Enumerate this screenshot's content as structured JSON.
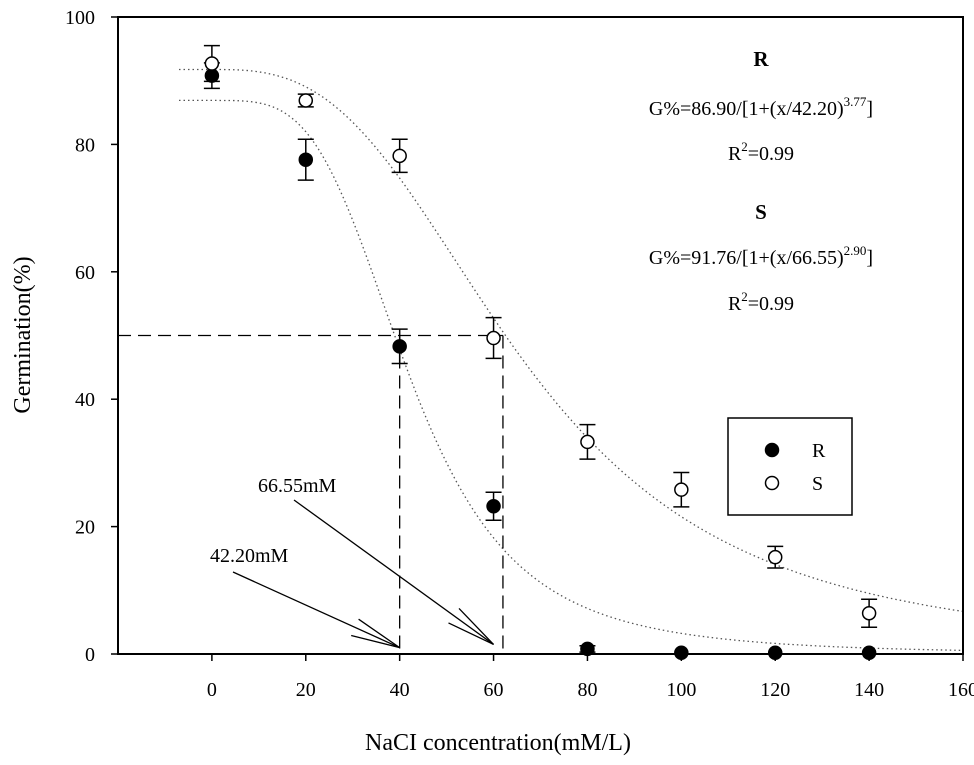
{
  "chart_data": {
    "type": "scatter",
    "title": "",
    "xlabel": "NaCI concentration(mM/L)",
    "ylabel": "Germination(%)",
    "xlim": [
      -20,
      160
    ],
    "ylim": [
      0,
      100
    ],
    "x_ticks": [
      0,
      20,
      40,
      60,
      80,
      100,
      120,
      140,
      160
    ],
    "y_ticks": [
      0,
      20,
      40,
      60,
      80,
      100
    ],
    "grid": false,
    "legend_position": "center-right",
    "series": [
      {
        "name": "R",
        "marker": "filled-circle",
        "x": [
          0,
          20,
          40,
          60,
          80,
          100,
          120,
          140
        ],
        "y": [
          90.8,
          77.6,
          48.3,
          23.2,
          0.8,
          0.2,
          0.2,
          0.2
        ],
        "error": [
          2.0,
          3.2,
          2.7,
          2.2,
          0.5,
          0,
          0,
          0
        ],
        "fit": {
          "a": 86.9,
          "x0": 42.2,
          "b": 3.77
        }
      },
      {
        "name": "S",
        "marker": "open-circle",
        "x": [
          0,
          20,
          40,
          60,
          80,
          100,
          120,
          140
        ],
        "y": [
          92.7,
          86.9,
          78.2,
          49.6,
          33.3,
          25.8,
          15.2,
          6.4
        ],
        "error": [
          2.8,
          1.0,
          2.6,
          3.2,
          2.7,
          2.7,
          1.7,
          2.2
        ],
        "fit": {
          "a": 91.76,
          "x0": 66.55,
          "b": 2.9
        }
      }
    ],
    "reference_lines": {
      "y": 50,
      "x": [
        40,
        62
      ]
    },
    "annotations": [
      {
        "text": "66.55mM",
        "points_to": [
          60,
          1.5
        ]
      },
      {
        "text": "42.20mM",
        "points_to": [
          40,
          1.0
        ]
      }
    ],
    "equations": {
      "r_head": "R",
      "r_eq_main": "G%=86.90/[1+(x/42.20)",
      "r_eq_exp": "3.77",
      "r_eq_end": "]",
      "r_r2_main": "R",
      "r_r2_exp": "2",
      "r_r2_val": "=0.99",
      "s_head": "S",
      "s_eq_main": "G%=91.76/[1+(x/66.55)",
      "s_eq_exp": "2.90",
      "s_eq_end": "]",
      "s_r2_main": "R",
      "s_r2_exp": "2",
      "s_r2_val": "=0.99"
    }
  }
}
